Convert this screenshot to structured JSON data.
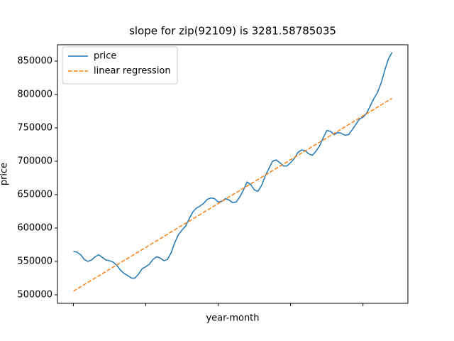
{
  "chart_data": {
    "type": "line",
    "title": "slope for zip(92109) is 3281.58785035",
    "x_label": "year-month",
    "y_label": "price",
    "series": [
      {
        "name": "price",
        "color": "#1f77b4",
        "dash": "solid",
        "x": [
          0,
          1,
          2,
          3,
          4,
          5,
          6,
          7,
          8,
          9,
          10,
          11,
          12,
          13,
          14,
          15,
          16,
          17,
          18,
          19,
          20,
          21,
          22,
          23,
          24,
          25,
          26,
          27,
          28,
          29,
          30,
          31,
          32,
          33,
          34,
          35,
          36,
          37,
          38,
          39,
          40,
          41,
          42,
          43,
          44,
          45,
          46,
          47,
          48,
          49,
          50,
          51,
          52,
          53,
          54,
          55,
          56,
          57,
          58,
          59,
          60,
          61,
          62,
          63,
          64,
          65,
          66,
          67,
          68,
          69,
          70,
          71,
          72,
          73,
          74,
          75,
          76,
          77,
          78,
          79,
          80,
          81,
          82,
          83,
          84,
          85,
          86,
          87,
          88
        ],
        "values": [
          565000,
          564000,
          560000,
          553000,
          550000,
          552000,
          557000,
          560000,
          556000,
          552000,
          551000,
          549000,
          544000,
          537000,
          532000,
          529000,
          525000,
          525000,
          531000,
          539000,
          542000,
          546000,
          553000,
          557000,
          555000,
          551000,
          553000,
          563000,
          578000,
          590000,
          597000,
          603000,
          614000,
          624000,
          630000,
          633000,
          637000,
          643000,
          645000,
          644000,
          639000,
          640000,
          644000,
          642000,
          638000,
          639000,
          647000,
          657000,
          669000,
          665000,
          657000,
          655000,
          664000,
          678000,
          689000,
          700000,
          702000,
          698000,
          693000,
          693000,
          698000,
          704000,
          713000,
          717000,
          716000,
          711000,
          709000,
          715000,
          723000,
          735000,
          746000,
          745000,
          740000,
          743000,
          742000,
          739000,
          740000,
          747000,
          755000,
          763000,
          766000,
          772000,
          783000,
          794000,
          803000,
          817000,
          836000,
          853000,
          863000
        ]
      },
      {
        "name": "linear regression",
        "color": "#ff7f0e",
        "dash": "dashed",
        "x": [
          0,
          88
        ],
        "values": [
          505400,
          794200
        ]
      }
    ],
    "xlim": [
      -4.4,
      92.4
    ],
    "xticks": [
      0,
      20,
      40,
      60,
      80
    ],
    "ylim": [
      487200,
      874500
    ],
    "yticks": [
      500000,
      550000,
      600000,
      650000,
      700000,
      750000,
      800000,
      850000
    ],
    "legend": "upper left",
    "grid": false
  }
}
